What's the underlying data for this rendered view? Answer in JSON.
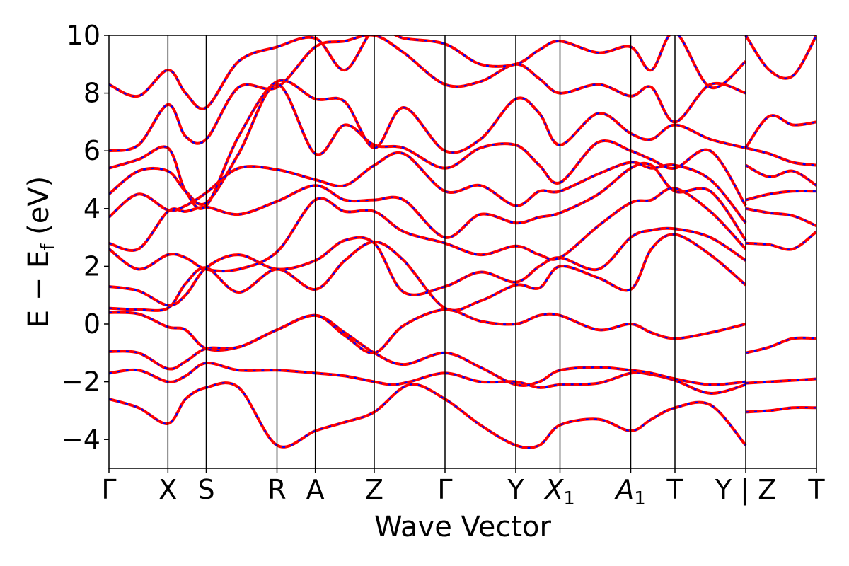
{
  "chart_data": {
    "type": "line",
    "title": "",
    "xlabel": "Wave Vector",
    "ylabel": "E − E_f (eV)",
    "ylabel_parts": {
      "main": "E − E",
      "sub": "f",
      "unit": " (eV)"
    },
    "ylim": [
      -5,
      10
    ],
    "yticks": [
      -4,
      -2,
      0,
      2,
      4,
      6,
      8,
      10
    ],
    "ytick_labels": [
      "−4",
      "−2",
      "0",
      "2",
      "4",
      "6",
      "8",
      "10"
    ],
    "xlim": [
      0,
      12
    ],
    "kpoints": [
      {
        "x": 0,
        "label": "Γ"
      },
      {
        "x": 1,
        "label": "X"
      },
      {
        "x": 1.65,
        "label": "S"
      },
      {
        "x": 2.85,
        "label": "R"
      },
      {
        "x": 3.5,
        "label": "A"
      },
      {
        "x": 4.5,
        "label": "Z"
      },
      {
        "x": 5.7,
        "label": "Γ"
      },
      {
        "x": 6.9,
        "label": "Y"
      },
      {
        "x": 7.65,
        "label": "X",
        "sub": "1"
      },
      {
        "x": 8.85,
        "label": "A",
        "sub": "1"
      },
      {
        "x": 9.6,
        "label": "T"
      },
      {
        "x": 10.8,
        "label": "Y | Z"
      },
      {
        "x": 12,
        "label": "T"
      }
    ],
    "grid": false,
    "legend": null,
    "series_style": [
      {
        "name": "",
        "color": "#ff0000",
        "dash": "solid"
      },
      {
        "name": "",
        "color": "#0000ff",
        "dash": "dashed"
      }
    ],
    "bands": [
      {
        "x": [
          0,
          0.5,
          1,
          1.3,
          1.65,
          2.2,
          2.85,
          3.5,
          4.0,
          4.5,
          5.1,
          5.7,
          6.3,
          6.9,
          7.3,
          7.65,
          8.3,
          8.85,
          9.2,
          9.6,
          10.2,
          10.8
        ],
        "y": [
          -2.6,
          -2.9,
          -3.45,
          -2.6,
          -2.2,
          -2.2,
          -4.2,
          -3.7,
          -3.4,
          -3.05,
          -2.1,
          -2.6,
          -3.5,
          -4.2,
          -4.2,
          -3.5,
          -3.3,
          -3.7,
          -3.3,
          -2.9,
          -2.8,
          -4.2
        ]
      },
      {
        "x": [
          0,
          0.5,
          1,
          1.3,
          1.65,
          2.2,
          2.85,
          3.5,
          4.0,
          4.5,
          4.8,
          5.1,
          5.7,
          6.3,
          6.9,
          7.3,
          7.65,
          8.3,
          8.85,
          9.2,
          9.6,
          10.2,
          10.8
        ],
        "y": [
          -1.7,
          -1.6,
          -2.0,
          -1.8,
          -1.35,
          -1.6,
          -1.6,
          -1.7,
          -1.8,
          -2.0,
          -2.1,
          -2.0,
          -1.7,
          -2.0,
          -2.0,
          -2.2,
          -2.1,
          -2.05,
          -1.7,
          -1.75,
          -1.95,
          -2.4,
          -2.1
        ]
      },
      {
        "x": [
          0,
          0.5,
          1,
          1.3,
          1.65,
          2.2,
          2.85,
          3.5,
          4.0,
          4.5,
          5.0,
          5.7,
          6.3,
          6.9,
          7.3,
          7.65,
          8.3,
          8.85,
          9.2,
          9.6,
          10.2,
          10.8
        ],
        "y": [
          -0.95,
          -1.0,
          -1.55,
          -1.3,
          -0.85,
          -0.8,
          -0.2,
          0.3,
          -0.3,
          -1.0,
          -1.4,
          -1.0,
          -1.5,
          -2.1,
          -2.0,
          -1.6,
          -1.5,
          -1.6,
          -1.7,
          -1.9,
          -2.1,
          -2.0
        ]
      },
      {
        "x": [
          0,
          0.5,
          1,
          1.3,
          1.65,
          2.2,
          2.85,
          3.5,
          4.0,
          4.5,
          5.0,
          5.7,
          6.3,
          6.9,
          7.3,
          7.65,
          8.3,
          8.85,
          9.2,
          9.6,
          10.2,
          10.8
        ],
        "y": [
          0.4,
          0.35,
          -0.1,
          -0.2,
          -0.85,
          -0.8,
          -0.2,
          0.3,
          -0.4,
          -1.0,
          -0.05,
          0.5,
          0.1,
          0.0,
          0.3,
          0.3,
          -0.2,
          0.0,
          -0.3,
          -0.5,
          -0.3,
          0.0
        ]
      },
      {
        "x": [
          0,
          0.5,
          1,
          1.3,
          1.65,
          2.2,
          2.85,
          3.5,
          4.0,
          4.5,
          5.0,
          5.7,
          6.3,
          6.9,
          7.3,
          7.65,
          8.3,
          8.85,
          9.2,
          9.6,
          10.2,
          10.8
        ],
        "y": [
          0.55,
          0.5,
          0.55,
          1.4,
          1.95,
          1.1,
          1.9,
          1.2,
          2.2,
          2.85,
          2.2,
          0.55,
          0.8,
          1.35,
          1.25,
          2.0,
          1.6,
          1.2,
          2.6,
          3.1,
          2.4,
          1.35
        ]
      },
      {
        "x": [
          0,
          0.5,
          1,
          1.3,
          1.65,
          2.2,
          2.85,
          3.5,
          4.0,
          4.5,
          5.0,
          5.7,
          6.3,
          6.9,
          7.3,
          7.65,
          8.3,
          8.85,
          9.2,
          9.6,
          10.2,
          10.8
        ],
        "y": [
          1.3,
          1.15,
          0.65,
          1.0,
          1.95,
          2.4,
          1.9,
          2.2,
          2.9,
          2.8,
          1.1,
          1.3,
          1.8,
          1.45,
          2.0,
          2.3,
          1.9,
          3.0,
          3.25,
          3.3,
          3.0,
          2.2
        ]
      },
      {
        "x": [
          0,
          0.5,
          1,
          1.3,
          1.65,
          2.2,
          2.85,
          3.5,
          4.0,
          4.5,
          5.0,
          5.7,
          6.3,
          6.9,
          7.3,
          7.65,
          8.3,
          8.85,
          9.2,
          9.6,
          10.2,
          10.8
        ],
        "y": [
          2.6,
          1.9,
          2.4,
          2.3,
          1.9,
          1.9,
          2.5,
          4.3,
          3.9,
          3.9,
          3.2,
          2.8,
          2.4,
          2.7,
          2.4,
          2.3,
          3.4,
          4.2,
          4.3,
          4.7,
          3.9,
          2.6
        ]
      },
      {
        "x": [
          0,
          0.5,
          1,
          1.3,
          1.65,
          2.2,
          2.85,
          3.5,
          4.0,
          4.5,
          5.0,
          5.7,
          6.3,
          6.9,
          7.3,
          7.65,
          8.3,
          8.85,
          9.2,
          9.6,
          10.2,
          10.8
        ],
        "y": [
          2.8,
          2.6,
          3.9,
          3.9,
          4.05,
          3.8,
          4.25,
          4.8,
          4.3,
          4.3,
          4.3,
          3.0,
          3.8,
          3.5,
          3.7,
          3.85,
          4.5,
          5.4,
          5.5,
          4.6,
          4.6,
          2.9
        ]
      },
      {
        "x": [
          0,
          0.5,
          1,
          1.3,
          1.65,
          2.2,
          2.85,
          3.5,
          4.0,
          4.5,
          5.0,
          5.7,
          6.3,
          6.9,
          7.3,
          7.65,
          8.3,
          8.85,
          9.2,
          9.6,
          10.2,
          10.8
        ],
        "y": [
          3.7,
          4.5,
          3.95,
          4.1,
          4.55,
          5.4,
          5.35,
          5.0,
          4.8,
          5.5,
          5.9,
          4.6,
          4.8,
          4.1,
          4.6,
          4.6,
          5.2,
          5.6,
          5.4,
          5.5,
          5.0,
          3.5
        ]
      },
      {
        "x": [
          0,
          0.5,
          1,
          1.3,
          1.65,
          2.2,
          2.85,
          3.5,
          4.0,
          4.5,
          5.0,
          5.7,
          6.3,
          6.9,
          7.3,
          7.65,
          8.3,
          8.85,
          9.2,
          9.6,
          10.2,
          10.8
        ],
        "y": [
          4.5,
          5.3,
          5.3,
          4.6,
          4.2,
          5.9,
          8.3,
          5.9,
          6.9,
          6.2,
          6.1,
          5.4,
          6.1,
          6.2,
          5.5,
          4.9,
          6.3,
          6.0,
          5.7,
          5.4,
          6.0,
          4.1
        ]
      },
      {
        "x": [
          0,
          0.5,
          1,
          1.3,
          1.65,
          2.2,
          2.85,
          3.5,
          4.0,
          4.5,
          5.0,
          5.7,
          6.3,
          6.9,
          7.3,
          7.65,
          8.3,
          8.85,
          9.2,
          9.6,
          10.2,
          10.8
        ],
        "y": [
          5.4,
          5.7,
          6.1,
          4.6,
          4.1,
          6.5,
          8.4,
          7.8,
          7.7,
          6.1,
          7.5,
          6.0,
          6.4,
          7.8,
          7.3,
          6.2,
          7.3,
          6.6,
          6.4,
          6.9,
          6.4,
          6.1
        ]
      },
      {
        "x": [
          0,
          0.5,
          1,
          1.3,
          1.65,
          2.2,
          2.85,
          3.5,
          4.0,
          4.5,
          5.0,
          5.7,
          6.3,
          6.9,
          7.3,
          7.65,
          8.3,
          8.85,
          9.2,
          9.6,
          10.2,
          10.8
        ],
        "y": [
          6.0,
          6.2,
          7.6,
          6.5,
          6.4,
          8.2,
          8.2,
          9.6,
          9.8,
          10.0,
          9.4,
          8.3,
          8.4,
          9.0,
          8.5,
          8.0,
          8.3,
          7.9,
          8.2,
          7.0,
          8.3,
          8.0
        ]
      },
      {
        "x": [
          0,
          0.5,
          1,
          1.3,
          1.65,
          2.2,
          2.85,
          3.5,
          4.0,
          4.5,
          5.0,
          5.7,
          6.3,
          6.9,
          7.3,
          7.65,
          8.3,
          8.85,
          9.2,
          9.6,
          10.2,
          10.8
        ],
        "y": [
          8.3,
          7.9,
          8.8,
          8.0,
          7.5,
          9.1,
          9.6,
          9.9,
          8.8,
          10.2,
          9.9,
          9.7,
          9.0,
          9.0,
          9.5,
          9.8,
          9.4,
          9.6,
          8.8,
          10.1,
          8.2,
          9.1
        ]
      },
      {
        "x": [
          10.8,
          11.2,
          11.6,
          12
        ],
        "y": [
          -1.0,
          -0.8,
          -0.5,
          -0.5
        ]
      },
      {
        "x": [
          10.8,
          11.2,
          11.6,
          12
        ],
        "y": [
          -2.05,
          -2.0,
          -1.95,
          -1.9
        ]
      },
      {
        "x": [
          10.8,
          11.2,
          11.6,
          12
        ],
        "y": [
          -3.05,
          -3.0,
          -2.9,
          -2.9
        ]
      },
      {
        "x": [
          10.8,
          11.2,
          11.6,
          12
        ],
        "y": [
          2.8,
          2.75,
          2.6,
          3.2
        ]
      },
      {
        "x": [
          10.8,
          11.2,
          11.6,
          12
        ],
        "y": [
          4.0,
          3.85,
          3.75,
          3.4
        ]
      },
      {
        "x": [
          10.8,
          11.2,
          11.6,
          12
        ],
        "y": [
          4.3,
          4.5,
          4.6,
          4.6
        ]
      },
      {
        "x": [
          10.8,
          11.2,
          11.6,
          12
        ],
        "y": [
          5.5,
          5.1,
          5.3,
          4.8
        ]
      },
      {
        "x": [
          10.8,
          11.2,
          11.6,
          12
        ],
        "y": [
          6.1,
          5.9,
          5.6,
          5.5
        ]
      },
      {
        "x": [
          10.8,
          11.2,
          11.6,
          12
        ],
        "y": [
          6.1,
          7.2,
          6.9,
          7.0
        ]
      },
      {
        "x": [
          10.8,
          11.2,
          11.6,
          12
        ],
        "y": [
          10.0,
          8.8,
          8.6,
          10.0
        ]
      }
    ]
  }
}
